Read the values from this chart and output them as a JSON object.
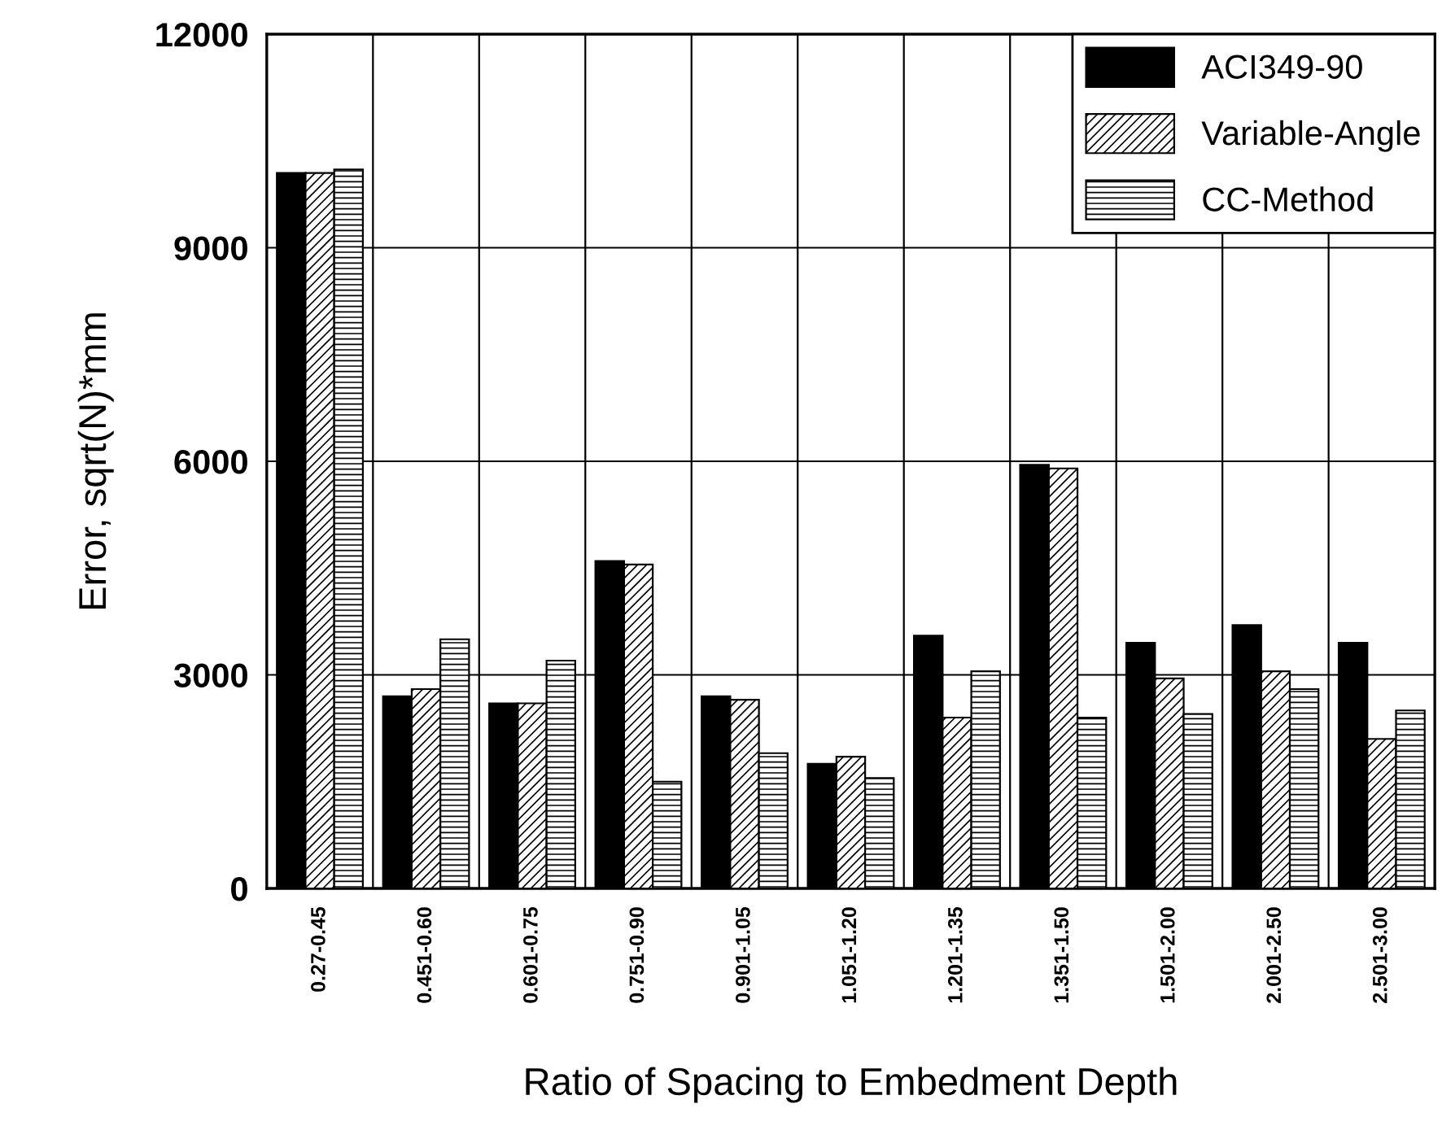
{
  "chart_data": {
    "type": "bar",
    "xlabel": "Ratio of Spacing to Embedment Depth",
    "ylabel": "Error, sqrt(N)*mm",
    "categories": [
      "0.27-0.45",
      "0.451-0.60",
      "0.601-0.75",
      "0.751-0.90",
      "0.901-1.05",
      "1.051-1.20",
      "1.201-1.35",
      "1.351-1.50",
      "1.501-2.00",
      "2.001-2.50",
      "2.501-3.00"
    ],
    "series": [
      {
        "name": "ACI349-90",
        "color": "#000000",
        "values": [
          10050,
          2700,
          2600,
          4600,
          2700,
          1750,
          3550,
          5950,
          3450,
          3700,
          3450
        ]
      },
      {
        "name": "Variable-Angle",
        "color": "#000000",
        "values": [
          10050,
          2800,
          2600,
          4550,
          2650,
          1850,
          2400,
          5900,
          2950,
          3050,
          2100
        ]
      },
      {
        "name": "CC-Method",
        "color": "#000000",
        "values": [
          10100,
          3500,
          3200,
          1500,
          1900,
          1550,
          3050,
          2400,
          2450,
          2800,
          2500
        ]
      }
    ],
    "ylim": [
      0,
      12000
    ],
    "yticks": [
      0,
      3000,
      6000,
      9000,
      12000
    ],
    "grid": true,
    "legend": "top right"
  }
}
